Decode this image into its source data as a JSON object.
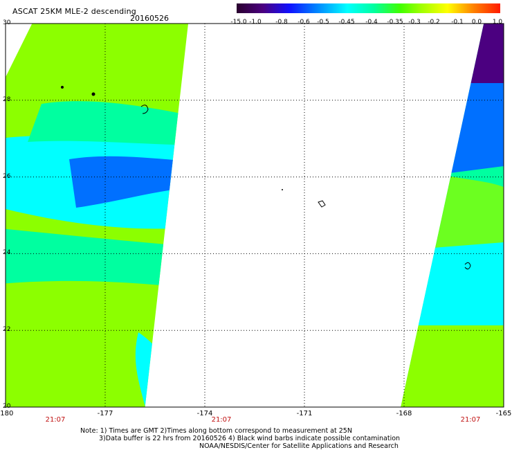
{
  "header": {
    "title": "ASCAT 25KM MLE-2 descending",
    "date": "20160526"
  },
  "colorbar": {
    "labels": [
      "-15.0",
      "-1.0",
      "-0.8",
      "-0.6",
      "-0.5",
      "-0.45",
      "-0.4",
      "-0.35",
      "-0.3",
      "-0.2",
      "-0.1",
      "0.0",
      "1.0"
    ],
    "colors": [
      "#2a002e",
      "#4b0080",
      "#1010ff",
      "#0080ff",
      "#00ffff",
      "#00ffa0",
      "#40ff00",
      "#a0ff00",
      "#ffff00",
      "#ff8000",
      "#ff1a00"
    ]
  },
  "map": {
    "x_axis": {
      "min": -180,
      "max": -165,
      "ticks": [
        "-180",
        "-177",
        "-174",
        "-171",
        "-168",
        "-165"
      ]
    },
    "y_axis": {
      "min": 20,
      "max": 30,
      "ticks": [
        "30",
        "28",
        "26",
        "24",
        "22",
        "20"
      ]
    },
    "times": [
      "21:07",
      "21:07",
      "21:07"
    ],
    "swaths": [
      {
        "name": "west-swath",
        "lon_west": -180,
        "lon_east_top": -174.5,
        "lon_east_bottom": -175.8
      },
      {
        "name": "east-swath",
        "lon_west_top": -165.6,
        "lon_west_bottom": -168.1,
        "lon_east": -165
      }
    ],
    "fill_colors": {
      "green": "#8cff00",
      "lime": "#6cff20",
      "cyan": "#00ffff",
      "teal": "#00ffa0",
      "blue": "#0070ff",
      "dark_blue": "#1010ff",
      "purple": "#4b0080"
    }
  },
  "footer": {
    "note_line1": "Note: 1) Times are GMT 2)Times along bottom correspond to measurement at 25N",
    "note_line2": "3)Data buffer is 22 hrs from 20160526 4) Black wind barbs indicate possible contamination",
    "credit": "NOAA/NESDIS/Center for Satellite Applications and Research"
  }
}
